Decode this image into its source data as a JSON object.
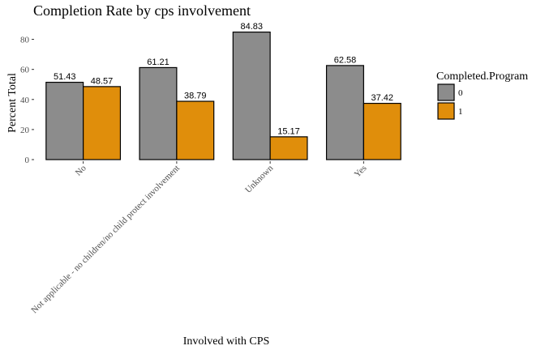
{
  "chart_data": {
    "type": "bar",
    "title": "Completion Rate by cps involvement",
    "xlabel": "Involved with CPS",
    "ylabel": "Percent Total",
    "categories": [
      "No",
      "Not applicable - no children/no child protect involvement",
      "Unknown",
      "Yes"
    ],
    "series": [
      {
        "name": "0",
        "color": "#8c8c8c",
        "values": [
          51.43,
          61.21,
          84.83,
          62.58
        ]
      },
      {
        "name": "1",
        "color": "#e08e0b",
        "values": [
          48.57,
          38.79,
          15.17,
          37.42
        ]
      }
    ],
    "value_labels": [
      [
        "51.43",
        "61.21",
        "84.83",
        "62.58"
      ],
      [
        "48.57",
        "38.79",
        "15.17",
        "37.42"
      ]
    ],
    "ylim": [
      0,
      90
    ],
    "yticks": [
      0,
      20,
      40,
      60,
      80
    ],
    "ytick_labels": [
      "0",
      "20",
      "40",
      "60",
      "80"
    ],
    "grid": false,
    "legend": {
      "title": "Completed.Program",
      "position": "right"
    }
  }
}
